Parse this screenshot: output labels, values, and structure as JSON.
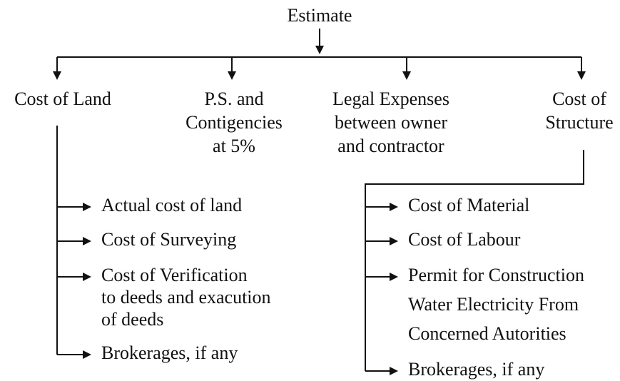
{
  "root": "Estimate",
  "nodes": [
    {
      "lines": [
        "Cost of Land"
      ],
      "items": [
        {
          "lines": [
            "Actual cost of land"
          ]
        },
        {
          "lines": [
            "Cost of Surveying"
          ]
        },
        {
          "lines": [
            "Cost of Verification",
            "to deeds and exacution",
            "of deeds"
          ]
        },
        {
          "lines": [
            "Brokerages, if any"
          ]
        }
      ]
    },
    {
      "lines": [
        "P.S. and",
        "Contigencies",
        "at 5%"
      ]
    },
    {
      "lines": [
        "Legal Expenses",
        "between owner",
        "and contractor"
      ]
    },
    {
      "lines": [
        "Cost of",
        "Structure"
      ],
      "items": [
        {
          "lines": [
            "Cost of Material"
          ]
        },
        {
          "lines": [
            "Cost of Labour"
          ]
        },
        {
          "lines": [
            "Permit for Construction",
            "Water Electricity From",
            "Concerned Autorities"
          ]
        },
        {
          "lines": [
            "Brokerages, if any"
          ]
        }
      ]
    }
  ]
}
